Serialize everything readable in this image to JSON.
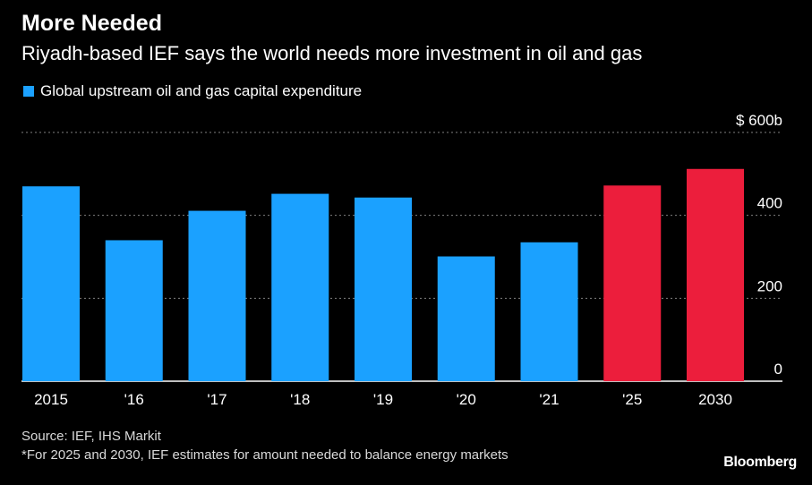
{
  "header": {
    "title": "More Needed",
    "subtitle": "Riyadh-based IEF says the world needs more investment in oil and gas"
  },
  "legend": {
    "label": "Global upstream oil and gas capital expenditure"
  },
  "colors": {
    "background": "#000000",
    "actual": "#1ba1ff",
    "estimate": "#ec1e3c",
    "grid": "#808080",
    "text": "#ffffff"
  },
  "chart_data": {
    "type": "bar",
    "categories": [
      "2015",
      "'16",
      "'17",
      "'18",
      "'19",
      "'20",
      "'21",
      "'25",
      "2030"
    ],
    "values": [
      470,
      340,
      411,
      452,
      443,
      301,
      335,
      472,
      512
    ],
    "estimate_flags": [
      false,
      false,
      false,
      false,
      false,
      false,
      false,
      true,
      true
    ],
    "ylim": [
      0,
      600
    ],
    "yticks": [
      0,
      200,
      400,
      600
    ],
    "ytick_labels": [
      "0",
      "200",
      "400",
      "$ 600b"
    ],
    "grid": true,
    "y_axis_position": "right",
    "legend_position": "top-left"
  },
  "footer": {
    "source": "Source: IEF, IHS Markit",
    "footnote": "*For 2025 and 2030, IEF estimates for amount needed to balance energy markets",
    "brand": "Bloomberg"
  }
}
